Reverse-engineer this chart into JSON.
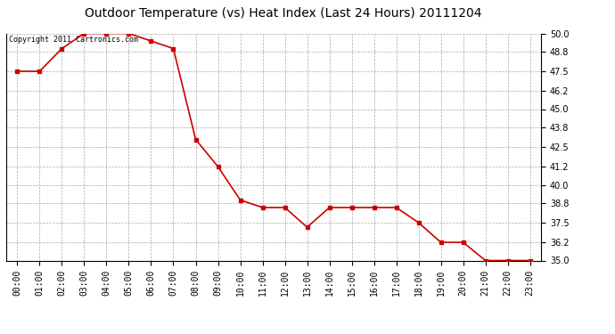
{
  "title": "Outdoor Temperature (vs) Heat Index (Last 24 Hours) 20111204",
  "copyright_text": "Copyright 2011 Cartronics.com",
  "x_labels": [
    "00:00",
    "01:00",
    "02:00",
    "03:00",
    "04:00",
    "05:00",
    "06:00",
    "07:00",
    "08:00",
    "09:00",
    "10:00",
    "11:00",
    "12:00",
    "13:00",
    "14:00",
    "15:00",
    "16:00",
    "17:00",
    "18:00",
    "19:00",
    "20:00",
    "21:00",
    "22:00",
    "23:00"
  ],
  "y_values": [
    47.5,
    47.5,
    49.0,
    50.0,
    50.0,
    50.0,
    49.5,
    49.0,
    43.0,
    41.2,
    39.0,
    38.5,
    38.5,
    37.2,
    38.5,
    38.5,
    38.5,
    38.5,
    37.5,
    36.2,
    36.2,
    35.0,
    35.0,
    35.0
  ],
  "y_min": 35.0,
  "y_max": 50.0,
  "y_ticks": [
    35.0,
    36.2,
    37.5,
    38.8,
    40.0,
    41.2,
    42.5,
    43.8,
    45.0,
    46.2,
    47.5,
    48.8,
    50.0
  ],
  "line_color": "#cc0000",
  "marker_color": "#cc0000",
  "bg_color": "#ffffff",
  "grid_color": "#aaaaaa",
  "title_fontsize": 10,
  "copyright_fontsize": 6,
  "tick_fontsize": 7,
  "ytick_fontsize": 7
}
